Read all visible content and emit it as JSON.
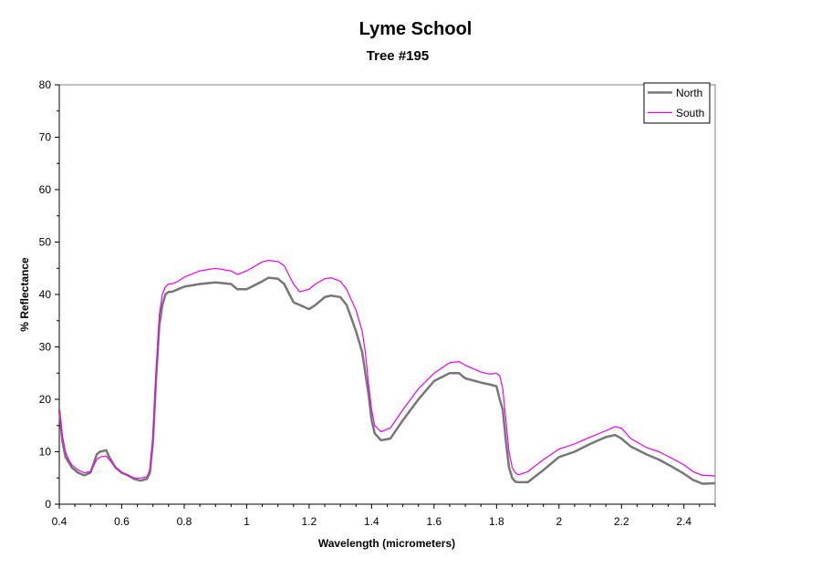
{
  "chart_data": {
    "type": "line",
    "title": "Lyme School",
    "subtitle": "Tree #195",
    "xlabel": "Wavelength (micrometers)",
    "ylabel": "% Reflectance",
    "xlim": [
      0.4,
      2.5
    ],
    "ylim": [
      0,
      80
    ],
    "x_ticks": [
      0.4,
      0.6,
      0.8,
      1,
      1.2,
      1.4,
      1.6,
      1.8,
      2,
      2.2,
      2.4
    ],
    "x_tick_labels": [
      "0.4",
      "0.6",
      "0.8",
      "1",
      "1.2",
      "1.4",
      "1.6",
      "1.8",
      "2",
      "2.2",
      "2.4"
    ],
    "y_ticks": [
      0,
      10,
      20,
      30,
      40,
      50,
      60,
      70,
      80
    ],
    "y_tick_labels": [
      "0",
      "10",
      "20",
      "30",
      "40",
      "50",
      "60",
      "70",
      "80"
    ],
    "grid": false,
    "legend_position": "top-right",
    "series": [
      {
        "name": "North",
        "color": "#777777",
        "x": [
          0.4,
          0.41,
          0.42,
          0.43,
          0.44,
          0.46,
          0.48,
          0.5,
          0.52,
          0.53,
          0.55,
          0.56,
          0.58,
          0.6,
          0.62,
          0.64,
          0.66,
          0.68,
          0.69,
          0.7,
          0.71,
          0.72,
          0.73,
          0.74,
          0.75,
          0.76,
          0.78,
          0.8,
          0.85,
          0.9,
          0.95,
          0.97,
          1.0,
          1.05,
          1.07,
          1.1,
          1.12,
          1.15,
          1.17,
          1.2,
          1.22,
          1.25,
          1.27,
          1.3,
          1.32,
          1.35,
          1.37,
          1.38,
          1.39,
          1.4,
          1.41,
          1.43,
          1.46,
          1.5,
          1.55,
          1.6,
          1.65,
          1.68,
          1.7,
          1.75,
          1.78,
          1.8,
          1.81,
          1.82,
          1.83,
          1.84,
          1.85,
          1.86,
          1.87,
          1.9,
          1.95,
          2.0,
          2.05,
          2.1,
          2.15,
          2.18,
          2.2,
          2.23,
          2.28,
          2.32,
          2.36,
          2.4,
          2.43,
          2.46,
          2.5
        ],
        "y": [
          18,
          12,
          9,
          8,
          7,
          6,
          5.5,
          6,
          9.5,
          10,
          10.3,
          9,
          7,
          6,
          5.5,
          4.8,
          4.5,
          4.8,
          6,
          12,
          24,
          34,
          38,
          40,
          40.5,
          40.5,
          41,
          41.5,
          42,
          42.3,
          42,
          41,
          41,
          42.5,
          43.2,
          43,
          42,
          38.5,
          38,
          37.2,
          38,
          39.5,
          39.8,
          39.5,
          38,
          33,
          29,
          25,
          21,
          16,
          13.5,
          12.2,
          12.5,
          16,
          20,
          23.5,
          25,
          25,
          24,
          23.2,
          22.8,
          22.5,
          20,
          18,
          12,
          7,
          5,
          4.3,
          4.2,
          4.2,
          6.5,
          9,
          10,
          11.5,
          12.8,
          13.2,
          12.5,
          11,
          9.5,
          8.5,
          7.2,
          5.8,
          4.6,
          3.9,
          4
        ]
      },
      {
        "name": "South",
        "color": "#ee00ee",
        "x": [
          0.4,
          0.41,
          0.42,
          0.43,
          0.44,
          0.46,
          0.48,
          0.5,
          0.52,
          0.53,
          0.55,
          0.56,
          0.58,
          0.6,
          0.62,
          0.64,
          0.66,
          0.68,
          0.69,
          0.7,
          0.71,
          0.72,
          0.73,
          0.74,
          0.75,
          0.76,
          0.78,
          0.8,
          0.85,
          0.9,
          0.95,
          0.97,
          1.0,
          1.05,
          1.07,
          1.1,
          1.12,
          1.15,
          1.17,
          1.2,
          1.22,
          1.25,
          1.27,
          1.3,
          1.32,
          1.35,
          1.37,
          1.38,
          1.39,
          1.4,
          1.41,
          1.43,
          1.46,
          1.5,
          1.55,
          1.6,
          1.65,
          1.68,
          1.7,
          1.75,
          1.78,
          1.8,
          1.81,
          1.82,
          1.83,
          1.84,
          1.85,
          1.86,
          1.87,
          1.9,
          1.95,
          2.0,
          2.05,
          2.1,
          2.15,
          2.18,
          2.2,
          2.23,
          2.28,
          2.32,
          2.36,
          2.4,
          2.43,
          2.46,
          2.5
        ],
        "y": [
          18,
          13,
          10,
          8.5,
          7.5,
          6.5,
          6,
          6.2,
          8.5,
          9,
          9.2,
          8.5,
          7,
          6,
          5.5,
          5,
          5,
          5.2,
          6.5,
          13,
          25,
          36,
          40,
          41.5,
          42,
          42,
          42.5,
          43.3,
          44.5,
          45,
          44.5,
          43.8,
          44.5,
          46.2,
          46.5,
          46.3,
          45.5,
          42,
          40.5,
          41,
          42,
          43,
          43.2,
          42.5,
          41,
          37,
          33,
          29,
          23,
          18,
          15,
          13.8,
          14.5,
          18,
          22,
          25,
          27,
          27.2,
          26.5,
          25.2,
          24.8,
          25,
          24.5,
          22,
          16,
          10,
          7,
          6,
          5.6,
          6.2,
          8.5,
          10.5,
          11.5,
          12.8,
          14,
          14.8,
          14.5,
          12.5,
          10.8,
          10,
          8.8,
          7.5,
          6.2,
          5.5,
          5.4
        ]
      }
    ]
  }
}
